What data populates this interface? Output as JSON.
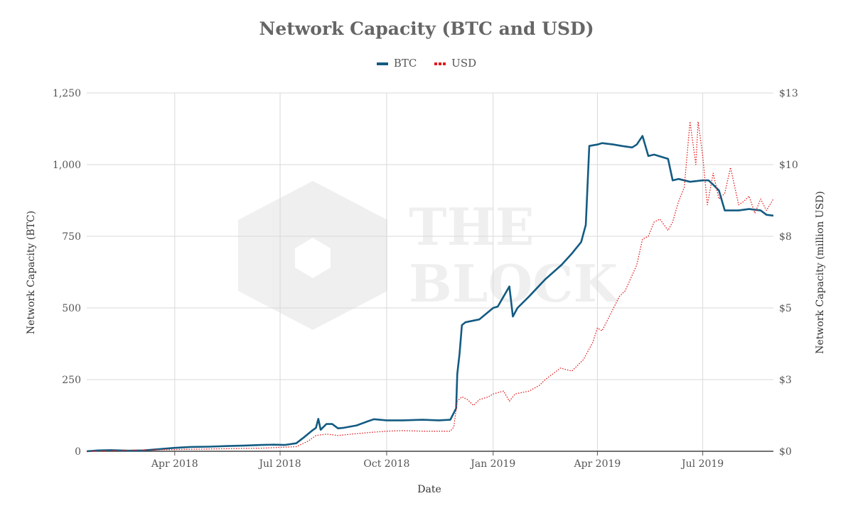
{
  "chart_data": {
    "type": "line",
    "title": "Network Capacity (BTC and USD)",
    "xlabel": "Date",
    "ylabel_left": "Network Capacity (BTC)",
    "ylabel_right": "Network Capacity (million USD)",
    "x_tick_labels": [
      "Apr 2018",
      "Jul 2018",
      "Oct 2018",
      "Jan 2019",
      "Apr 2019",
      "Jul 2019"
    ],
    "y_left_ticks": [
      "0",
      "250",
      "500",
      "750",
      "1,000",
      "1,250"
    ],
    "y_right_ticks": [
      "$0",
      "$3",
      "$5",
      "$8",
      "$10",
      "$13"
    ],
    "ylim_left": [
      0,
      1250
    ],
    "ylim_right": [
      0,
      12.5
    ],
    "xlim": [
      "2018-01-15",
      "2019-08-31"
    ],
    "grid": true,
    "legend": "top-center",
    "watermark": "THE BLOCK",
    "series": [
      {
        "name": "BTC",
        "axis": "left",
        "color": "#135b82",
        "style": "solid",
        "x": [
          "2018-01-15",
          "2018-01-25",
          "2018-02-05",
          "2018-02-20",
          "2018-03-05",
          "2018-03-20",
          "2018-04-01",
          "2018-04-15",
          "2018-05-01",
          "2018-05-15",
          "2018-06-01",
          "2018-06-15",
          "2018-06-25",
          "2018-07-05",
          "2018-07-15",
          "2018-07-22",
          "2018-07-28",
          "2018-08-01",
          "2018-08-03",
          "2018-08-05",
          "2018-08-10",
          "2018-08-15",
          "2018-08-20",
          "2018-08-25",
          "2018-09-05",
          "2018-09-15",
          "2018-09-20",
          "2018-10-01",
          "2018-10-15",
          "2018-11-01",
          "2018-11-15",
          "2018-11-25",
          "2018-11-30",
          "2018-12-01",
          "2018-12-03",
          "2018-12-05",
          "2018-12-08",
          "2018-12-20",
          "2019-01-01",
          "2019-01-05",
          "2019-01-15",
          "2019-01-18",
          "2019-01-22",
          "2019-02-01",
          "2019-02-15",
          "2019-03-01",
          "2019-03-10",
          "2019-03-18",
          "2019-03-22",
          "2019-03-25",
          "2019-04-01",
          "2019-04-05",
          "2019-04-15",
          "2019-04-22",
          "2019-05-01",
          "2019-05-05",
          "2019-05-10",
          "2019-05-15",
          "2019-05-20",
          "2019-06-01",
          "2019-06-05",
          "2019-06-10",
          "2019-06-20",
          "2019-07-01",
          "2019-07-06",
          "2019-07-10",
          "2019-07-15",
          "2019-07-20",
          "2019-08-01",
          "2019-08-10",
          "2019-08-20",
          "2019-08-25",
          "2019-08-31"
        ],
        "values": [
          0,
          3,
          4,
          2,
          3,
          8,
          12,
          15,
          16,
          18,
          20,
          22,
          23,
          22,
          28,
          50,
          70,
          82,
          113,
          75,
          95,
          95,
          80,
          82,
          90,
          105,
          112,
          108,
          108,
          110,
          108,
          110,
          150,
          270,
          340,
          440,
          450,
          460,
          500,
          505,
          575,
          470,
          500,
          540,
          600,
          650,
          690,
          730,
          790,
          1065,
          1070,
          1075,
          1070,
          1065,
          1060,
          1070,
          1100,
          1030,
          1035,
          1020,
          945,
          950,
          940,
          945,
          945,
          930,
          910,
          840,
          840,
          845,
          840,
          825,
          822
        ]
      },
      {
        "name": "USD",
        "axis": "right",
        "color": "#e31a1c",
        "style": "dotted",
        "x": [
          "2018-01-15",
          "2018-02-15",
          "2018-03-15",
          "2018-04-15",
          "2018-05-15",
          "2018-06-15",
          "2018-07-15",
          "2018-07-25",
          "2018-08-01",
          "2018-08-10",
          "2018-08-20",
          "2018-09-01",
          "2018-09-15",
          "2018-10-01",
          "2018-10-15",
          "2018-11-01",
          "2018-11-15",
          "2018-11-25",
          "2018-11-28",
          "2018-12-01",
          "2018-12-05",
          "2018-12-10",
          "2018-12-15",
          "2018-12-20",
          "2018-12-28",
          "2019-01-01",
          "2019-01-10",
          "2019-01-15",
          "2019-01-20",
          "2019-02-01",
          "2019-02-10",
          "2019-02-15",
          "2019-02-28",
          "2019-03-10",
          "2019-03-20",
          "2019-03-28",
          "2019-04-01",
          "2019-04-05",
          "2019-04-10",
          "2019-04-20",
          "2019-04-25",
          "2019-05-05",
          "2019-05-10",
          "2019-05-15",
          "2019-05-20",
          "2019-05-25",
          "2019-06-01",
          "2019-06-05",
          "2019-06-10",
          "2019-06-15",
          "2019-06-20",
          "2019-06-25",
          "2019-06-27",
          "2019-07-01",
          "2019-07-05",
          "2019-07-10",
          "2019-07-15",
          "2019-07-20",
          "2019-07-25",
          "2019-08-01",
          "2019-08-05",
          "2019-08-10",
          "2019-08-15",
          "2019-08-20",
          "2019-08-25",
          "2019-08-31"
        ],
        "values": [
          0,
          0.03,
          0.05,
          0.07,
          0.09,
          0.11,
          0.16,
          0.35,
          0.55,
          0.6,
          0.55,
          0.6,
          0.65,
          0.7,
          0.72,
          0.7,
          0.7,
          0.7,
          0.85,
          1.75,
          1.9,
          1.8,
          1.6,
          1.8,
          1.9,
          2.0,
          2.1,
          1.75,
          2.0,
          2.1,
          2.3,
          2.5,
          2.9,
          2.8,
          3.2,
          3.8,
          4.3,
          4.2,
          4.6,
          5.4,
          5.6,
          6.5,
          7.4,
          7.5,
          8.0,
          8.1,
          7.7,
          8.0,
          8.7,
          9.2,
          11.5,
          10.0,
          11.5,
          10.3,
          8.6,
          9.7,
          8.8,
          9.0,
          9.9,
          8.6,
          8.7,
          8.9,
          8.3,
          8.8,
          8.4,
          8.8
        ]
      }
    ]
  }
}
